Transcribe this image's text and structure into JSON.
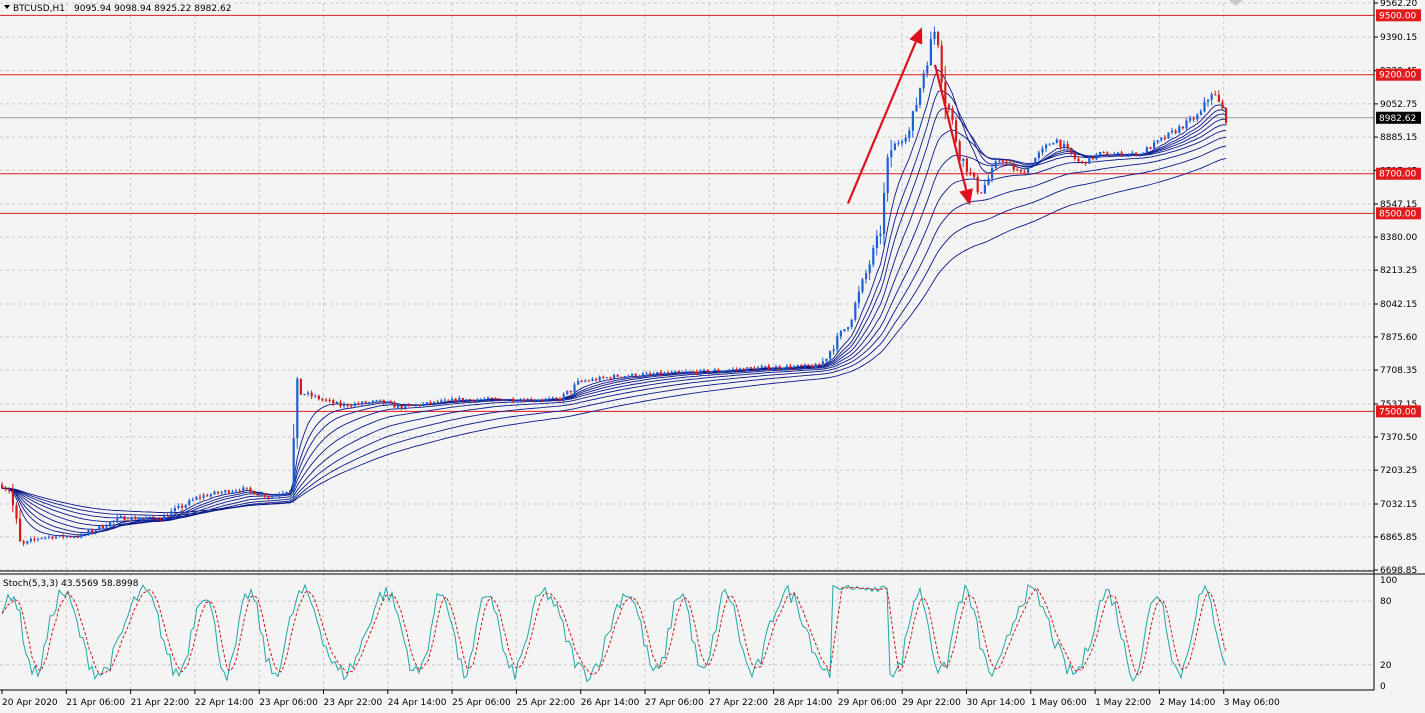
{
  "header": {
    "symbol_timeframe": "BTCUSD,H1",
    "ohlc": "9095.94 9098.94 8925.22 8982.62"
  },
  "oscillator": {
    "label": "Stoch(5,3,3) 43.5569 58.8998",
    "scale": [
      "100",
      "80",
      "20",
      "0"
    ]
  },
  "price_scale": [
    "9562.20",
    "9390.15",
    "9220.45",
    "9052.75",
    "8885.15",
    "8717.45",
    "8547.15",
    "8380.00",
    "8213.25",
    "8042.15",
    "7875.60",
    "7708.35",
    "7537.15",
    "7370.50",
    "7203.25",
    "7032.15",
    "6865.85",
    "6698.85"
  ],
  "current_price": "8982.62",
  "levels": [
    {
      "value": 9500,
      "label": "9500.00"
    },
    {
      "value": 9200,
      "label": "9200.00"
    },
    {
      "value": 8700,
      "label": "8700.00"
    },
    {
      "value": 8500,
      "label": "8500.00"
    },
    {
      "value": 7500,
      "label": "7500.00"
    }
  ],
  "time_labels": [
    "20 Apr 2020",
    "21 Apr 06:00",
    "21 Apr 22:00",
    "22 Apr 14:00",
    "23 Apr 06:00",
    "23 Apr 22:00",
    "24 Apr 14:00",
    "25 Apr 06:00",
    "25 Apr 22:00",
    "26 Apr 14:00",
    "27 Apr 06:00",
    "27 Apr 22:00",
    "28 Apr 14:00",
    "29 Apr 06:00",
    "29 Apr 22:00",
    "30 Apr 14:00",
    "1 May 06:00",
    "1 May 22:00",
    "2 May 14:00",
    "3 May 06:00"
  ],
  "colors": {
    "level_line": "#e01b1b",
    "bull_candle": "#1f5fd6",
    "bear_candle": "#d41c1c",
    "ma_lines": "#0c1a8a",
    "stoch_main": "#20a6a6",
    "stoch_signal": "#c81e1e",
    "arrow": "#e0101e",
    "grid": "#c8c8c8"
  },
  "chart_data": {
    "type": "candlestick",
    "symbol": "BTCUSD",
    "timeframe": "H1",
    "y_range": [
      6698.85,
      9562.2
    ],
    "oscillator_range": [
      0,
      100
    ],
    "price_path": [
      {
        "t": 0,
        "price": 7130
      },
      {
        "t": 10,
        "price": 7100
      },
      {
        "t": 20,
        "price": 6820
      },
      {
        "t": 40,
        "price": 6865
      },
      {
        "t": 80,
        "price": 6870
      },
      {
        "t": 120,
        "price": 6960
      },
      {
        "t": 160,
        "price": 6960
      },
      {
        "t": 200,
        "price": 7070
      },
      {
        "t": 240,
        "price": 7110
      },
      {
        "t": 270,
        "price": 7070
      },
      {
        "t": 290,
        "price": 7110
      },
      {
        "t": 298,
        "price": 7600
      },
      {
        "t": 340,
        "price": 7530
      },
      {
        "t": 380,
        "price": 7550
      },
      {
        "t": 400,
        "price": 7520
      },
      {
        "t": 460,
        "price": 7560
      },
      {
        "t": 500,
        "price": 7560
      },
      {
        "t": 560,
        "price": 7560
      },
      {
        "t": 580,
        "price": 7650
      },
      {
        "t": 620,
        "price": 7680
      },
      {
        "t": 700,
        "price": 7700
      },
      {
        "t": 760,
        "price": 7720
      },
      {
        "t": 820,
        "price": 7730
      },
      {
        "t": 850,
        "price": 7960
      },
      {
        "t": 880,
        "price": 8400
      },
      {
        "t": 890,
        "price": 8820
      },
      {
        "t": 910,
        "price": 8920
      },
      {
        "t": 925,
        "price": 9250
      },
      {
        "t": 936,
        "price": 9450
      },
      {
        "t": 945,
        "price": 9100
      },
      {
        "t": 960,
        "price": 8800
      },
      {
        "t": 980,
        "price": 8600
      },
      {
        "t": 1000,
        "price": 8780
      },
      {
        "t": 1020,
        "price": 8700
      },
      {
        "t": 1055,
        "price": 8880
      },
      {
        "t": 1080,
        "price": 8750
      },
      {
        "t": 1100,
        "price": 8800
      },
      {
        "t": 1140,
        "price": 8800
      },
      {
        "t": 1170,
        "price": 8900
      },
      {
        "t": 1200,
        "price": 9000
      },
      {
        "t": 1212,
        "price": 9120
      },
      {
        "t": 1226,
        "price": 8982.62
      }
    ],
    "annotations": [
      {
        "type": "arrow",
        "from": {
          "t": 848,
          "price": 8550
        },
        "to": {
          "t": 922,
          "price": 9440
        }
      },
      {
        "type": "arrow",
        "from": {
          "t": 935,
          "price": 9250
        },
        "to": {
          "t": 970,
          "price": 8540
        }
      }
    ]
  }
}
